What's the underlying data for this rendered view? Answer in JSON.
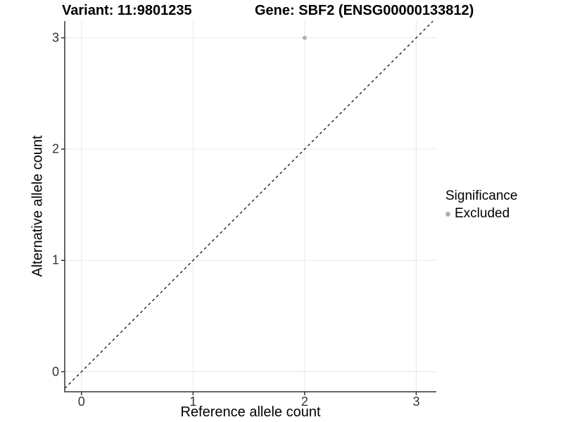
{
  "header": {
    "variant_title": "Variant: 11:9801235",
    "gene_title": "Gene: SBF2 (ENSG00000133812)"
  },
  "chart_data": {
    "type": "scatter",
    "xlabel": "Reference allele count",
    "ylabel": "Alternative allele count",
    "x_ticks": [
      0,
      1,
      2,
      3
    ],
    "y_ticks": [
      0,
      1,
      2,
      3
    ],
    "xlim": [
      -0.15,
      3.18
    ],
    "ylim": [
      -0.18,
      3.15
    ],
    "grid": true,
    "reference_line": {
      "type": "identity",
      "slope": 1,
      "intercept": 0,
      "style": "dashed",
      "color": "#000000"
    },
    "series": [
      {
        "name": "Excluded",
        "color": "#b0b0b0",
        "points": [
          {
            "x": 2,
            "y": 3
          }
        ]
      }
    ],
    "legend": {
      "title": "Significance",
      "position": "right",
      "entries": [
        {
          "label": "Excluded",
          "color": "#b0b0b0"
        }
      ]
    }
  },
  "colors": {
    "background": "#ffffff",
    "grid": "#e8e8e8",
    "axis": "#333333",
    "tick_label": "#333333",
    "text": "#000000"
  }
}
